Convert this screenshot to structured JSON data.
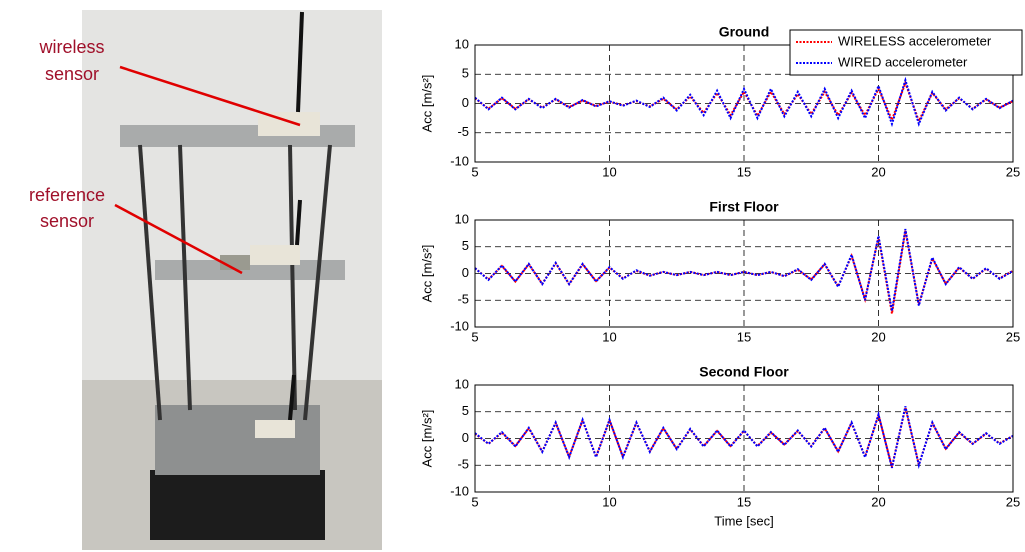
{
  "photo": {
    "labels": [
      [
        "wireless",
        "sensor"
      ],
      [
        "reference",
        "sensor"
      ]
    ]
  },
  "chart_data": [
    {
      "type": "line",
      "title": "Ground",
      "ylabel": "Acc [m/s²]",
      "x": [
        5,
        5.5,
        6,
        6.5,
        7,
        7.5,
        8,
        8.5,
        9,
        9.5,
        10,
        10.5,
        11,
        11.5,
        12,
        12.5,
        13,
        13.5,
        14,
        14.5,
        15,
        15.5,
        16,
        16.5,
        17,
        17.5,
        18,
        18.5,
        19,
        19.5,
        20,
        20.5,
        21,
        21.5,
        22,
        22.5,
        23,
        23.5,
        24,
        24.5,
        25
      ],
      "series": [
        {
          "name": "WIRELESS accelerometer",
          "color": "#ff0000",
          "values": [
            0.9,
            -0.9,
            0.9,
            -0.9,
            0.7,
            -0.7,
            0.7,
            -0.6,
            0.5,
            -0.4,
            0.3,
            -0.3,
            0.4,
            -0.5,
            0.8,
            -1,
            1.2,
            -1.6,
            1.8,
            -2,
            2,
            -2.1,
            2,
            -1.8,
            1.6,
            -1.8,
            2,
            -2,
            1.8,
            -2,
            2.5,
            -2.8,
            3.5,
            -3,
            1.8,
            -1,
            0.9,
            -0.9,
            0.7,
            -0.7,
            0.4
          ]
        },
        {
          "name": "WIRED accelerometer",
          "color": "#0000ff",
          "values": [
            1,
            -1,
            1,
            -1,
            0.8,
            -0.8,
            0.8,
            -0.7,
            0.6,
            -0.5,
            0.4,
            -0.4,
            0.5,
            -0.6,
            1,
            -1.2,
            1.5,
            -2,
            2.2,
            -2.5,
            2.5,
            -2.5,
            2.5,
            -2.2,
            2,
            -2.2,
            2.5,
            -2.5,
            2.2,
            -2.5,
            3,
            -3.5,
            4,
            -3.5,
            2,
            -1.2,
            1,
            -1,
            0.8,
            -0.8,
            0.5
          ]
        }
      ],
      "xlim": [
        5,
        25
      ],
      "xticks": [
        5,
        10,
        15,
        20,
        25
      ],
      "ylim": [
        -10,
        10
      ],
      "yticks": [
        -10,
        -5,
        0,
        5,
        10
      ],
      "grid": true,
      "legend": "upper right"
    },
    {
      "type": "line",
      "title": "First Floor",
      "ylabel": "Acc [m/s²]",
      "x": [
        5,
        5.5,
        6,
        6.5,
        7,
        7.5,
        8,
        8.5,
        9,
        9.5,
        10,
        10.5,
        11,
        11.5,
        12,
        12.5,
        13,
        13.5,
        14,
        14.5,
        15,
        15.5,
        16,
        16.5,
        17,
        17.5,
        18,
        18.5,
        19,
        19.5,
        20,
        20.5,
        21,
        21.5,
        22,
        22.5,
        23,
        23.5,
        24,
        24.5,
        25
      ],
      "series": [
        {
          "color": "#ff0000",
          "values": [
            1,
            -1.1,
            1.4,
            -1.5,
            1.7,
            -1.9,
            1.9,
            -2,
            1.7,
            -1.4,
            1.1,
            -0.9,
            0.5,
            -0.4,
            0.3,
            -0.3,
            0.3,
            -0.3,
            0.3,
            -0.3,
            0.3,
            -0.3,
            0.3,
            -0.5,
            0.7,
            -1.1,
            1.7,
            -2.4,
            3.3,
            -4.8,
            6.8,
            -7.5,
            8,
            -5.8,
            2.8,
            -1.9,
            1.1,
            -1,
            0.9,
            -0.9,
            0.5
          ]
        },
        {
          "color": "#0000ff",
          "values": [
            1,
            -1.2,
            1.5,
            -1.5,
            1.8,
            -2,
            2,
            -2,
            1.8,
            -1.5,
            1.2,
            -1,
            0.6,
            -0.4,
            0.3,
            -0.3,
            0.3,
            -0.3,
            0.3,
            -0.3,
            0.3,
            -0.3,
            0.3,
            -0.5,
            0.8,
            -1.2,
            1.8,
            -2.5,
            3.5,
            -5,
            7,
            -7,
            8.3,
            -6,
            3,
            -2,
            1.2,
            -1,
            1,
            -1,
            0.5
          ]
        }
      ],
      "xlim": [
        5,
        25
      ],
      "xticks": [
        5,
        10,
        15,
        20,
        25
      ],
      "ylim": [
        -10,
        10
      ],
      "yticks": [
        -10,
        -5,
        0,
        5,
        10
      ],
      "grid": true
    },
    {
      "type": "line",
      "title": "Second Floor",
      "ylabel": "Acc [m/s²]",
      "xlabel": "Time [sec]",
      "x": [
        5,
        5.5,
        6,
        6.5,
        7,
        7.5,
        8,
        8.5,
        9,
        9.5,
        10,
        10.5,
        11,
        11.5,
        12,
        12.5,
        13,
        13.5,
        14,
        14.5,
        15,
        15.5,
        16,
        16.5,
        17,
        17.5,
        18,
        18.5,
        19,
        19.5,
        20,
        20.5,
        21,
        21.5,
        22,
        22.5,
        23,
        23.5,
        24,
        24.5,
        25
      ],
      "series": [
        {
          "color": "#ff0000",
          "values": [
            0.9,
            -1,
            1.1,
            -1.4,
            1.9,
            -2.4,
            2.9,
            -3.4,
            3.4,
            -3.4,
            3.4,
            -3.4,
            2.9,
            -2.4,
            1.9,
            -1.9,
            1.7,
            -1.4,
            1.4,
            -1.4,
            1.4,
            -1.4,
            1.1,
            -1.1,
            1.4,
            -1.4,
            1.9,
            -2.4,
            2.9,
            -3.4,
            4.4,
            -5.3,
            5.8,
            -4.9,
            2.9,
            -1.9,
            1.1,
            -1,
            0.9,
            -0.9,
            0.5
          ]
        },
        {
          "color": "#0000ff",
          "values": [
            1,
            -1,
            1.2,
            -1.5,
            2,
            -2.5,
            3,
            -3.5,
            3.5,
            -3.5,
            3.5,
            -3.5,
            3,
            -2.5,
            2,
            -2,
            1.8,
            -1.5,
            1.5,
            -1.5,
            1.5,
            -1.5,
            1.2,
            -1.2,
            1.5,
            -1.5,
            2,
            -2.5,
            3,
            -3.5,
            4.5,
            -5.5,
            6,
            -5,
            3,
            -2,
            1.2,
            -1,
            1,
            -1,
            0.5
          ]
        }
      ],
      "xlim": [
        5,
        25
      ],
      "xticks": [
        5,
        10,
        15,
        20,
        25
      ],
      "ylim": [
        -10,
        10
      ],
      "yticks": [
        -10,
        -5,
        0,
        5,
        10
      ],
      "grid": true
    }
  ]
}
